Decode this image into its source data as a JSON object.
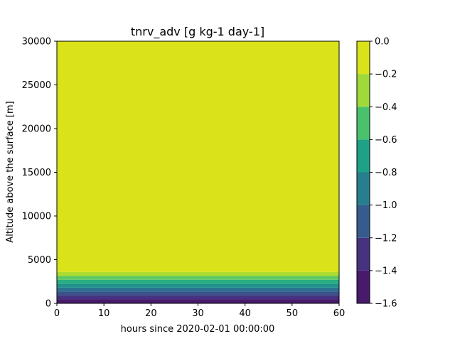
{
  "chart_data": {
    "type": "contourf",
    "title": "tnrv_adv [g kg-1 day-1]",
    "xlabel": "hours since 2020-02-01 00:00:00",
    "ylabel": "Altitude above the surface [m]",
    "xlim": [
      0,
      60
    ],
    "ylim": [
      0,
      30000
    ],
    "x_ticks": [
      0,
      10,
      20,
      30,
      40,
      50,
      60
    ],
    "x_tick_labels": [
      "0",
      "10",
      "20",
      "30",
      "40",
      "50",
      "60"
    ],
    "y_ticks": [
      0,
      5000,
      10000,
      15000,
      20000,
      25000,
      30000
    ],
    "y_tick_labels": [
      "0",
      "5000",
      "10000",
      "15000",
      "20000",
      "25000",
      "30000"
    ],
    "bands": [
      {
        "from_alt": 0,
        "to_alt": 450,
        "color": "#481a6c"
      },
      {
        "from_alt": 450,
        "to_alt": 900,
        "color": "#46327e"
      },
      {
        "from_alt": 900,
        "to_alt": 1350,
        "color": "#3b528b"
      },
      {
        "from_alt": 1350,
        "to_alt": 1800,
        "color": "#2c728e"
      },
      {
        "from_alt": 1800,
        "to_alt": 2250,
        "color": "#21918c"
      },
      {
        "from_alt": 2250,
        "to_alt": 2700,
        "color": "#28ae80"
      },
      {
        "from_alt": 2700,
        "to_alt": 3150,
        "color": "#5ec962"
      },
      {
        "from_alt": 3150,
        "to_alt": 3600,
        "color": "#addc30"
      },
      {
        "from_alt": 3600,
        "to_alt": 30000,
        "color": "#dae319"
      }
    ],
    "colorbar": {
      "levels": [
        -1.6,
        -1.4,
        -1.2,
        -1.0,
        -0.8,
        -0.6,
        -0.4,
        -0.2,
        0.0
      ],
      "tick_labels": [
        "−1.6",
        "−1.4",
        "−1.2",
        "−1.0",
        "−0.8",
        "−0.6",
        "−0.4",
        "−0.2",
        "0.0"
      ],
      "colors": [
        "#481a6c",
        "#46327e",
        "#365c8d",
        "#277f8e",
        "#1fa187",
        "#4ac16d",
        "#9fda3a",
        "#dae319"
      ]
    }
  }
}
